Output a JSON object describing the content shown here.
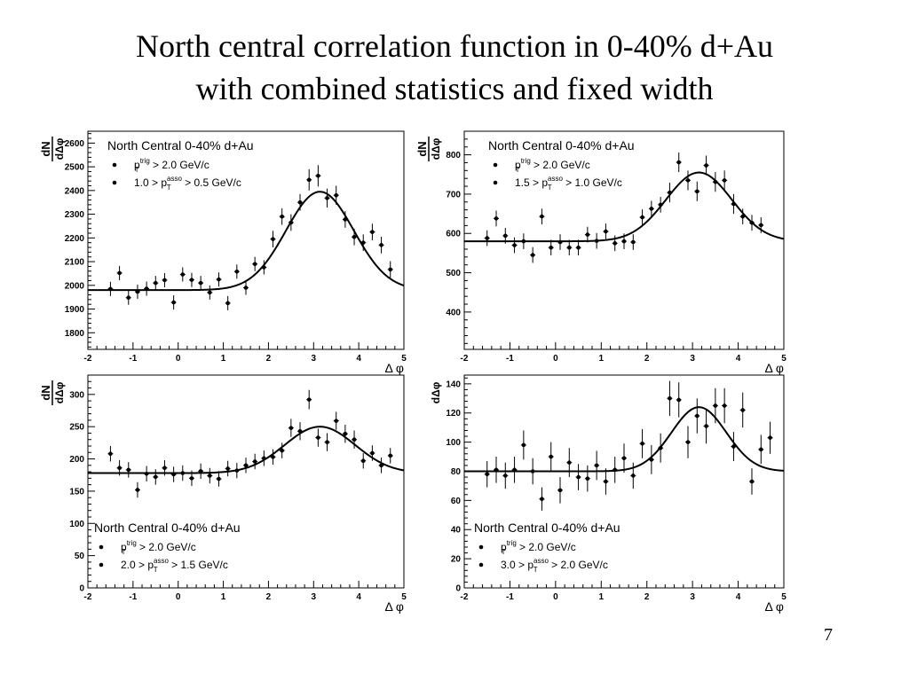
{
  "slide": {
    "title_line1": "North central correlation function in 0-40% d+Au",
    "title_line2": "with combined statistics and fixed width",
    "page_number": "7"
  },
  "colors": {
    "background": "#ffffff",
    "ink": "#000000"
  },
  "chart_data": [
    {
      "type": "scatter",
      "legend": {
        "title": "North Central 0-40% d+Au",
        "entries": [
          {
            "prefix": "p",
            "sup": "trig",
            "sub": "T",
            "suffix": " > 2.0 GeV/c"
          },
          {
            "prefix": "1.0 > p",
            "sup": "asso",
            "sub": "T",
            "suffix": " > 0.5 GeV/c"
          }
        ],
        "placement": "top-left"
      },
      "ylabel_num": "dN",
      "ylabel_den": "dΔφ",
      "xlabel": "Δ φ",
      "xlim": [
        -2,
        5
      ],
      "ylim": [
        1730,
        2650
      ],
      "xticks": [
        "-2",
        "-1",
        "0",
        "1",
        "2",
        "3",
        "4",
        "5"
      ],
      "yticks": [
        "1800",
        "1900",
        "2000",
        "2100",
        "2200",
        "2300",
        "2400",
        "2500",
        "2600"
      ],
      "points": [
        {
          "x": -1.5,
          "y": 1985,
          "err": 30
        },
        {
          "x": -1.3,
          "y": 2052,
          "err": 30
        },
        {
          "x": -1.1,
          "y": 1948,
          "err": 30
        },
        {
          "x": -0.9,
          "y": 1973,
          "err": 30
        },
        {
          "x": -0.7,
          "y": 1986,
          "err": 30
        },
        {
          "x": -0.5,
          "y": 2010,
          "err": 30
        },
        {
          "x": -0.3,
          "y": 2022,
          "err": 30
        },
        {
          "x": -0.1,
          "y": 1928,
          "err": 30
        },
        {
          "x": 0.1,
          "y": 2046,
          "err": 30
        },
        {
          "x": 0.3,
          "y": 2023,
          "err": 30
        },
        {
          "x": 0.5,
          "y": 2010,
          "err": 30
        },
        {
          "x": 0.7,
          "y": 1970,
          "err": 30
        },
        {
          "x": 0.9,
          "y": 2025,
          "err": 30
        },
        {
          "x": 1.1,
          "y": 1925,
          "err": 30
        },
        {
          "x": 1.3,
          "y": 2058,
          "err": 30
        },
        {
          "x": 1.5,
          "y": 1990,
          "err": 30
        },
        {
          "x": 1.7,
          "y": 2090,
          "err": 30
        },
        {
          "x": 1.9,
          "y": 2076,
          "err": 30
        },
        {
          "x": 2.1,
          "y": 2195,
          "err": 35
        },
        {
          "x": 2.3,
          "y": 2290,
          "err": 35
        },
        {
          "x": 2.5,
          "y": 2265,
          "err": 35
        },
        {
          "x": 2.7,
          "y": 2350,
          "err": 35
        },
        {
          "x": 2.9,
          "y": 2445,
          "err": 45
        },
        {
          "x": 3.1,
          "y": 2462,
          "err": 45
        },
        {
          "x": 3.3,
          "y": 2368,
          "err": 40
        },
        {
          "x": 3.5,
          "y": 2380,
          "err": 40
        },
        {
          "x": 3.7,
          "y": 2278,
          "err": 35
        },
        {
          "x": 3.9,
          "y": 2204,
          "err": 35
        },
        {
          "x": 4.1,
          "y": 2180,
          "err": 35
        },
        {
          "x": 4.3,
          "y": 2225,
          "err": 35
        },
        {
          "x": 4.5,
          "y": 2170,
          "err": 35
        },
        {
          "x": 4.7,
          "y": 2067,
          "err": 35
        }
      ],
      "fit": {
        "model": "constant + gaussian",
        "baseline": 1980,
        "amplitude": 415,
        "mean": 3.14,
        "sigma": 0.75
      }
    },
    {
      "type": "scatter",
      "legend": {
        "title": "North Central 0-40% d+Au",
        "entries": [
          {
            "prefix": "p",
            "sup": "trig",
            "sub": "T",
            "suffix": " > 2.0 GeV/c"
          },
          {
            "prefix": "1.5 > p",
            "sup": "asso",
            "sub": "T",
            "suffix": " > 1.0 GeV/c"
          }
        ],
        "placement": "top-center"
      },
      "ylabel_num": "dN",
      "ylabel_den": "dΔφ",
      "xlabel": "Δ φ",
      "xlim": [
        -2,
        5
      ],
      "ylim": [
        305,
        860
      ],
      "xticks": [
        "-2",
        "-1",
        "0",
        "1",
        "2",
        "3",
        "4",
        "5"
      ],
      "yticks": [
        "400",
        "500",
        "600",
        "700",
        "800"
      ],
      "points": [
        {
          "x": -1.5,
          "y": 588,
          "err": 20
        },
        {
          "x": -1.3,
          "y": 638,
          "err": 20
        },
        {
          "x": -1.1,
          "y": 594,
          "err": 20
        },
        {
          "x": -0.9,
          "y": 570,
          "err": 20
        },
        {
          "x": -0.7,
          "y": 580,
          "err": 20
        },
        {
          "x": -0.5,
          "y": 545,
          "err": 20
        },
        {
          "x": -0.3,
          "y": 643,
          "err": 20
        },
        {
          "x": -0.1,
          "y": 564,
          "err": 20
        },
        {
          "x": 0.1,
          "y": 578,
          "err": 20
        },
        {
          "x": 0.3,
          "y": 564,
          "err": 20
        },
        {
          "x": 0.5,
          "y": 564,
          "err": 20
        },
        {
          "x": 0.7,
          "y": 597,
          "err": 20
        },
        {
          "x": 0.9,
          "y": 581,
          "err": 20
        },
        {
          "x": 1.1,
          "y": 605,
          "err": 20
        },
        {
          "x": 1.3,
          "y": 575,
          "err": 20
        },
        {
          "x": 1.5,
          "y": 580,
          "err": 20
        },
        {
          "x": 1.7,
          "y": 578,
          "err": 20
        },
        {
          "x": 1.9,
          "y": 641,
          "err": 20
        },
        {
          "x": 2.1,
          "y": 663,
          "err": 20
        },
        {
          "x": 2.3,
          "y": 673,
          "err": 20
        },
        {
          "x": 2.5,
          "y": 704,
          "err": 25
        },
        {
          "x": 2.7,
          "y": 781,
          "err": 25
        },
        {
          "x": 2.9,
          "y": 735,
          "err": 25
        },
        {
          "x": 3.1,
          "y": 707,
          "err": 25
        },
        {
          "x": 3.3,
          "y": 773,
          "err": 25
        },
        {
          "x": 3.5,
          "y": 731,
          "err": 25
        },
        {
          "x": 3.7,
          "y": 735,
          "err": 25
        },
        {
          "x": 3.9,
          "y": 675,
          "err": 25
        },
        {
          "x": 4.1,
          "y": 643,
          "err": 20
        },
        {
          "x": 4.3,
          "y": 627,
          "err": 20
        },
        {
          "x": 4.5,
          "y": 621,
          "err": 20
        }
      ],
      "fit": {
        "model": "constant + gaussian",
        "baseline": 580,
        "amplitude": 175,
        "mean": 3.14,
        "sigma": 0.72
      }
    },
    {
      "type": "scatter",
      "legend": {
        "title": "North Central 0-40% d+Au",
        "entries": [
          {
            "prefix": "p",
            "sup": "trig",
            "sub": "T",
            "suffix": " > 2.0 GeV/c"
          },
          {
            "prefix": "2.0 > p",
            "sup": "asso",
            "sub": "T",
            "suffix": " > 1.5 GeV/c"
          }
        ],
        "placement": "bottom-left"
      },
      "ylabel_num": "dN",
      "ylabel_den": "dΔφ",
      "xlabel": "Δ φ",
      "xlim": [
        -2,
        5
      ],
      "ylim": [
        0,
        330
      ],
      "xticks": [
        "-2",
        "-1",
        "0",
        "1",
        "2",
        "3",
        "4",
        "5"
      ],
      "yticks": [
        "0",
        "50",
        "100",
        "150",
        "200",
        "250",
        "300"
      ],
      "points": [
        {
          "x": -1.5,
          "y": 208,
          "err": 12
        },
        {
          "x": -1.3,
          "y": 186,
          "err": 12
        },
        {
          "x": -1.1,
          "y": 183,
          "err": 12
        },
        {
          "x": -0.9,
          "y": 152,
          "err": 12
        },
        {
          "x": -0.7,
          "y": 177,
          "err": 12
        },
        {
          "x": -0.5,
          "y": 172,
          "err": 12
        },
        {
          "x": -0.3,
          "y": 186,
          "err": 12
        },
        {
          "x": -0.1,
          "y": 176,
          "err": 12
        },
        {
          "x": 0.1,
          "y": 178,
          "err": 12
        },
        {
          "x": 0.3,
          "y": 170,
          "err": 12
        },
        {
          "x": 0.5,
          "y": 181,
          "err": 12
        },
        {
          "x": 0.7,
          "y": 174,
          "err": 12
        },
        {
          "x": 0.9,
          "y": 169,
          "err": 12
        },
        {
          "x": 1.1,
          "y": 185,
          "err": 12
        },
        {
          "x": 1.3,
          "y": 182,
          "err": 12
        },
        {
          "x": 1.5,
          "y": 190,
          "err": 12
        },
        {
          "x": 1.7,
          "y": 196,
          "err": 12
        },
        {
          "x": 1.9,
          "y": 201,
          "err": 12
        },
        {
          "x": 2.1,
          "y": 203,
          "err": 12
        },
        {
          "x": 2.3,
          "y": 213,
          "err": 12
        },
        {
          "x": 2.5,
          "y": 248,
          "err": 14
        },
        {
          "x": 2.7,
          "y": 243,
          "err": 14
        },
        {
          "x": 2.9,
          "y": 292,
          "err": 15
        },
        {
          "x": 3.1,
          "y": 233,
          "err": 14
        },
        {
          "x": 3.3,
          "y": 226,
          "err": 14
        },
        {
          "x": 3.5,
          "y": 259,
          "err": 14
        },
        {
          "x": 3.7,
          "y": 239,
          "err": 14
        },
        {
          "x": 3.9,
          "y": 230,
          "err": 14
        },
        {
          "x": 4.1,
          "y": 197,
          "err": 12
        },
        {
          "x": 4.3,
          "y": 209,
          "err": 12
        },
        {
          "x": 4.5,
          "y": 190,
          "err": 12
        },
        {
          "x": 4.7,
          "y": 205,
          "err": 12
        }
      ],
      "fit": {
        "model": "constant + gaussian",
        "baseline": 178,
        "amplitude": 72,
        "mean": 3.14,
        "sigma": 0.78
      }
    },
    {
      "type": "scatter",
      "legend": {
        "title": "North Central 0-40% d+Au",
        "entries": [
          {
            "prefix": "p",
            "sup": "trig",
            "sub": "T",
            "suffix": " > 2.0 GeV/c"
          },
          {
            "prefix": "3.0 > p",
            "sup": "asso",
            "sub": "T",
            "suffix": " > 2.0 GeV/c"
          }
        ],
        "placement": "bottom-left"
      },
      "ylabel_num": "",
      "ylabel_den": "dΔφ",
      "xlabel": "Δ φ",
      "xlim": [
        -2,
        5
      ],
      "ylim": [
        0,
        146
      ],
      "xticks": [
        "-2",
        "-1",
        "0",
        "1",
        "2",
        "3",
        "4",
        "5"
      ],
      "yticks": [
        "0",
        "20",
        "40",
        "60",
        "80",
        "100",
        "120",
        "140"
      ],
      "points": [
        {
          "x": -1.5,
          "y": 78,
          "err": 9
        },
        {
          "x": -1.3,
          "y": 81,
          "err": 9
        },
        {
          "x": -1.1,
          "y": 77,
          "err": 9
        },
        {
          "x": -0.9,
          "y": 81,
          "err": 9
        },
        {
          "x": -0.7,
          "y": 98,
          "err": 10
        },
        {
          "x": -0.5,
          "y": 80,
          "err": 9
        },
        {
          "x": -0.3,
          "y": 61,
          "err": 8
        },
        {
          "x": -0.1,
          "y": 90,
          "err": 10
        },
        {
          "x": 0.1,
          "y": 67,
          "err": 9
        },
        {
          "x": 0.3,
          "y": 86,
          "err": 10
        },
        {
          "x": 0.5,
          "y": 76,
          "err": 9
        },
        {
          "x": 0.7,
          "y": 75,
          "err": 9
        },
        {
          "x": 0.9,
          "y": 84,
          "err": 10
        },
        {
          "x": 1.1,
          "y": 73,
          "err": 9
        },
        {
          "x": 1.3,
          "y": 81,
          "err": 9
        },
        {
          "x": 1.5,
          "y": 89,
          "err": 10
        },
        {
          "x": 1.7,
          "y": 77,
          "err": 9
        },
        {
          "x": 1.9,
          "y": 99,
          "err": 10
        },
        {
          "x": 2.1,
          "y": 88,
          "err": 10
        },
        {
          "x": 2.3,
          "y": 96,
          "err": 10
        },
        {
          "x": 2.5,
          "y": 130,
          "err": 12
        },
        {
          "x": 2.7,
          "y": 129,
          "err": 12
        },
        {
          "x": 2.9,
          "y": 100,
          "err": 11
        },
        {
          "x": 3.1,
          "y": 118,
          "err": 12
        },
        {
          "x": 3.3,
          "y": 111,
          "err": 12
        },
        {
          "x": 3.5,
          "y": 125,
          "err": 12
        },
        {
          "x": 3.7,
          "y": 125,
          "err": 12
        },
        {
          "x": 3.9,
          "y": 97,
          "err": 10
        },
        {
          "x": 4.1,
          "y": 122,
          "err": 12
        },
        {
          "x": 4.3,
          "y": 73,
          "err": 9
        },
        {
          "x": 4.5,
          "y": 95,
          "err": 10
        },
        {
          "x": 4.7,
          "y": 103,
          "err": 11
        }
      ],
      "fit": {
        "model": "constant + gaussian",
        "baseline": 80,
        "amplitude": 44,
        "mean": 3.14,
        "sigma": 0.6
      }
    }
  ]
}
